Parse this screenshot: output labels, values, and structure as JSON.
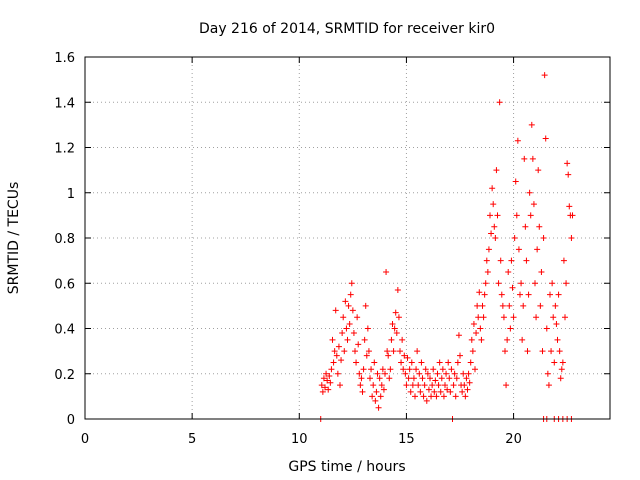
{
  "chart_data": {
    "type": "scatter",
    "title": "Day 216 of 2014, SRMTID for receiver kir0",
    "xlabel": "GPS time / hours",
    "ylabel": "SRMTID / TECUs",
    "xlim": [
      0,
      24.5
    ],
    "ylim": [
      0,
      1.6
    ],
    "xticks": [
      0,
      5,
      10,
      15,
      20
    ],
    "xtick_labels": [
      "0",
      "5",
      "10",
      "15",
      "20"
    ],
    "yticks": [
      0,
      0.2,
      0.4,
      0.6,
      0.8,
      1.0,
      1.2,
      1.4,
      1.6
    ],
    "ytick_labels": [
      "0",
      "0.2",
      "0.4",
      "0.6",
      "0.8",
      "1",
      "1.2",
      "1.4",
      "1.6"
    ],
    "grid": true,
    "marker": "+",
    "color": "#ff0000",
    "series": [
      {
        "name": "SRMTID",
        "points": [
          [
            11.0,
            0.0
          ],
          [
            11.05,
            0.15
          ],
          [
            11.1,
            0.12
          ],
          [
            11.15,
            0.18
          ],
          [
            11.2,
            0.14
          ],
          [
            11.25,
            0.2
          ],
          [
            11.3,
            0.17
          ],
          [
            11.35,
            0.13
          ],
          [
            11.4,
            0.19
          ],
          [
            11.45,
            0.16
          ],
          [
            11.5,
            0.22
          ],
          [
            11.55,
            0.35
          ],
          [
            11.6,
            0.25
          ],
          [
            11.65,
            0.3
          ],
          [
            11.7,
            0.48
          ],
          [
            11.75,
            0.28
          ],
          [
            11.8,
            0.2
          ],
          [
            11.85,
            0.32
          ],
          [
            11.9,
            0.15
          ],
          [
            11.95,
            0.26
          ],
          [
            12.0,
            0.38
          ],
          [
            12.05,
            0.45
          ],
          [
            12.1,
            0.3
          ],
          [
            12.15,
            0.52
          ],
          [
            12.2,
            0.4
          ],
          [
            12.25,
            0.35
          ],
          [
            12.3,
            0.5
          ],
          [
            12.35,
            0.42
          ],
          [
            12.4,
            0.55
          ],
          [
            12.45,
            0.6
          ],
          [
            12.5,
            0.48
          ],
          [
            12.55,
            0.38
          ],
          [
            12.6,
            0.3
          ],
          [
            12.65,
            0.25
          ],
          [
            12.7,
            0.45
          ],
          [
            12.75,
            0.33
          ],
          [
            12.8,
            0.2
          ],
          [
            12.85,
            0.15
          ],
          [
            12.9,
            0.18
          ],
          [
            12.95,
            0.12
          ],
          [
            13.0,
            0.22
          ],
          [
            13.05,
            0.35
          ],
          [
            13.1,
            0.5
          ],
          [
            13.15,
            0.28
          ],
          [
            13.2,
            0.4
          ],
          [
            13.25,
            0.3
          ],
          [
            13.3,
            0.18
          ],
          [
            13.35,
            0.22
          ],
          [
            13.4,
            0.1
          ],
          [
            13.45,
            0.15
          ],
          [
            13.5,
            0.25
          ],
          [
            13.55,
            0.08
          ],
          [
            13.6,
            0.12
          ],
          [
            13.65,
            0.2
          ],
          [
            13.7,
            0.05
          ],
          [
            13.75,
            0.18
          ],
          [
            13.8,
            0.1
          ],
          [
            13.85,
            0.15
          ],
          [
            13.9,
            0.22
          ],
          [
            13.95,
            0.13
          ],
          [
            14.0,
            0.2
          ],
          [
            14.05,
            0.65
          ],
          [
            14.1,
            0.3
          ],
          [
            14.15,
            0.28
          ],
          [
            14.2,
            0.18
          ],
          [
            14.25,
            0.22
          ],
          [
            14.3,
            0.35
          ],
          [
            14.35,
            0.42
          ],
          [
            14.4,
            0.3
          ],
          [
            14.45,
            0.4
          ],
          [
            14.5,
            0.47
          ],
          [
            14.55,
            0.38
          ],
          [
            14.6,
            0.57
          ],
          [
            14.65,
            0.45
          ],
          [
            14.7,
            0.3
          ],
          [
            14.75,
            0.25
          ],
          [
            14.8,
            0.35
          ],
          [
            14.85,
            0.22
          ],
          [
            14.9,
            0.28
          ],
          [
            14.95,
            0.2
          ],
          [
            15.0,
            0.15
          ],
          [
            15.05,
            0.27
          ],
          [
            15.1,
            0.18
          ],
          [
            15.15,
            0.22
          ],
          [
            15.2,
            0.12
          ],
          [
            15.25,
            0.25
          ],
          [
            15.3,
            0.15
          ],
          [
            15.35,
            0.18
          ],
          [
            15.4,
            0.1
          ],
          [
            15.45,
            0.22
          ],
          [
            15.5,
            0.3
          ],
          [
            15.55,
            0.15
          ],
          [
            15.6,
            0.2
          ],
          [
            15.65,
            0.12
          ],
          [
            15.7,
            0.25
          ],
          [
            15.75,
            0.18
          ],
          [
            15.8,
            0.1
          ],
          [
            15.85,
            0.15
          ],
          [
            15.9,
            0.22
          ],
          [
            15.95,
            0.08
          ],
          [
            16.0,
            0.2
          ],
          [
            16.05,
            0.13
          ],
          [
            16.1,
            0.18
          ],
          [
            16.15,
            0.1
          ],
          [
            16.2,
            0.15
          ],
          [
            16.25,
            0.22
          ],
          [
            16.3,
            0.12
          ],
          [
            16.35,
            0.17
          ],
          [
            16.4,
            0.1
          ],
          [
            16.45,
            0.2
          ],
          [
            16.5,
            0.15
          ],
          [
            16.55,
            0.25
          ],
          [
            16.6,
            0.12
          ],
          [
            16.65,
            0.18
          ],
          [
            16.7,
            0.22
          ],
          [
            16.75,
            0.1
          ],
          [
            16.8,
            0.15
          ],
          [
            16.85,
            0.2
          ],
          [
            16.9,
            0.13
          ],
          [
            16.95,
            0.25
          ],
          [
            17.0,
            0.18
          ],
          [
            17.05,
            0.12
          ],
          [
            17.1,
            0.22
          ],
          [
            17.15,
            0.0
          ],
          [
            17.2,
            0.15
          ],
          [
            17.25,
            0.2
          ],
          [
            17.3,
            0.1
          ],
          [
            17.35,
            0.18
          ],
          [
            17.4,
            0.25
          ],
          [
            17.45,
            0.37
          ],
          [
            17.5,
            0.28
          ],
          [
            17.55,
            0.15
          ],
          [
            17.6,
            0.12
          ],
          [
            17.65,
            0.2
          ],
          [
            17.7,
            0.15
          ],
          [
            17.75,
            0.1
          ],
          [
            17.8,
            0.18
          ],
          [
            17.85,
            0.13
          ],
          [
            17.9,
            0.2
          ],
          [
            17.95,
            0.16
          ],
          [
            18.0,
            0.25
          ],
          [
            18.05,
            0.35
          ],
          [
            18.1,
            0.3
          ],
          [
            18.15,
            0.42
          ],
          [
            18.2,
            0.22
          ],
          [
            18.25,
            0.38
          ],
          [
            18.3,
            0.5
          ],
          [
            18.35,
            0.45
          ],
          [
            18.4,
            0.56
          ],
          [
            18.45,
            0.4
          ],
          [
            18.5,
            0.35
          ],
          [
            18.55,
            0.5
          ],
          [
            18.6,
            0.45
          ],
          [
            18.65,
            0.55
          ],
          [
            18.7,
            0.6
          ],
          [
            18.75,
            0.7
          ],
          [
            18.8,
            0.65
          ],
          [
            18.85,
            0.75
          ],
          [
            18.9,
            0.9
          ],
          [
            18.95,
            0.82
          ],
          [
            19.0,
            1.02
          ],
          [
            19.05,
            0.95
          ],
          [
            19.1,
            0.85
          ],
          [
            19.15,
            0.8
          ],
          [
            19.2,
            1.1
          ],
          [
            19.25,
            0.9
          ],
          [
            19.3,
            0.6
          ],
          [
            19.35,
            1.4
          ],
          [
            19.4,
            0.7
          ],
          [
            19.45,
            0.55
          ],
          [
            19.5,
            0.5
          ],
          [
            19.55,
            0.45
          ],
          [
            19.6,
            0.3
          ],
          [
            19.65,
            0.15
          ],
          [
            19.7,
            0.35
          ],
          [
            19.75,
            0.65
          ],
          [
            19.8,
            0.5
          ],
          [
            19.85,
            0.4
          ],
          [
            19.9,
            0.7
          ],
          [
            19.95,
            0.58
          ],
          [
            20.0,
            0.45
          ],
          [
            20.05,
            0.8
          ],
          [
            20.1,
            1.05
          ],
          [
            20.15,
            0.9
          ],
          [
            20.2,
            1.23
          ],
          [
            20.25,
            0.75
          ],
          [
            20.3,
            0.55
          ],
          [
            20.35,
            0.6
          ],
          [
            20.4,
            0.35
          ],
          [
            20.45,
            0.5
          ],
          [
            20.5,
            1.15
          ],
          [
            20.55,
            0.85
          ],
          [
            20.6,
            0.7
          ],
          [
            20.65,
            0.3
          ],
          [
            20.7,
            0.55
          ],
          [
            20.75,
            1.0
          ],
          [
            20.8,
            0.9
          ],
          [
            20.85,
            1.3
          ],
          [
            20.9,
            1.15
          ],
          [
            20.95,
            0.95
          ],
          [
            21.0,
            0.6
          ],
          [
            21.05,
            0.45
          ],
          [
            21.1,
            0.75
          ],
          [
            21.15,
            1.1
          ],
          [
            21.2,
            0.85
          ],
          [
            21.25,
            0.5
          ],
          [
            21.3,
            0.65
          ],
          [
            21.35,
            0.3
          ],
          [
            21.4,
            0.8
          ],
          [
            21.45,
            1.52
          ],
          [
            21.5,
            1.24
          ],
          [
            21.55,
            0.4
          ],
          [
            21.6,
            0.2
          ],
          [
            21.65,
            0.15
          ],
          [
            21.7,
            0.55
          ],
          [
            21.75,
            0.3
          ],
          [
            21.8,
            0.6
          ],
          [
            21.85,
            0.45
          ],
          [
            21.9,
            0.25
          ],
          [
            21.95,
            0.5
          ],
          [
            22.0,
            0.42
          ],
          [
            22.05,
            0.35
          ],
          [
            22.1,
            0.55
          ],
          [
            22.15,
            0.3
          ],
          [
            22.2,
            0.18
          ],
          [
            22.25,
            0.22
          ],
          [
            22.3,
            0.25
          ],
          [
            22.35,
            0.7
          ],
          [
            22.4,
            0.45
          ],
          [
            22.45,
            0.6
          ],
          [
            22.5,
            1.13
          ],
          [
            22.55,
            1.08
          ],
          [
            22.6,
            0.94
          ],
          [
            22.65,
            0.9
          ],
          [
            22.7,
            0.8
          ],
          [
            22.75,
            0.9
          ],
          [
            21.4,
            0.0
          ],
          [
            21.55,
            0.0
          ],
          [
            21.9,
            0.0
          ],
          [
            22.1,
            0.0
          ],
          [
            22.3,
            0.0
          ],
          [
            22.5,
            0.0
          ],
          [
            22.7,
            0.0
          ]
        ]
      }
    ]
  }
}
